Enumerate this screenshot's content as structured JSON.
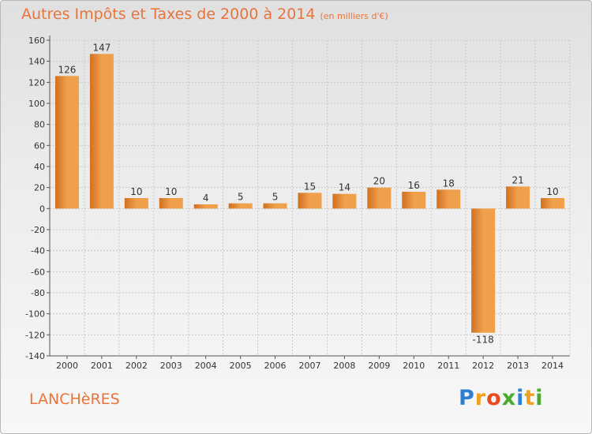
{
  "title": "Autres Impôts et Taxes de 2000 à 2014",
  "subtitle": "(en milliers d'€)",
  "place": "LANCHèRES",
  "logo": {
    "letters": [
      {
        "ch": "P",
        "color": "#2e7fd1"
      },
      {
        "ch": "r",
        "color": "#f0a01e"
      },
      {
        "ch": "o",
        "color": "#e84b1f"
      },
      {
        "ch": "x",
        "color": "#4aaa2e"
      },
      {
        "ch": "i",
        "color": "#2e7fd1"
      },
      {
        "ch": "t",
        "color": "#f0a01e"
      },
      {
        "ch": "i",
        "color": "#4aaa2e"
      }
    ]
  },
  "chart_data": {
    "type": "bar",
    "categories": [
      "2000",
      "2001",
      "2002",
      "2003",
      "2004",
      "2005",
      "2006",
      "2007",
      "2008",
      "2009",
      "2010",
      "2011",
      "2012",
      "2013",
      "2014"
    ],
    "values": [
      126,
      147,
      10,
      10,
      4,
      5,
      5,
      15,
      14,
      20,
      16,
      18,
      -118,
      21,
      10
    ],
    "ylim": [
      -140,
      160
    ],
    "yticks": [
      160,
      140,
      120,
      100,
      80,
      60,
      40,
      20,
      0,
      -20,
      -40,
      -60,
      -80,
      -100,
      -120,
      -140
    ],
    "bar_color": "#f0a04b",
    "bar_color_dark": "#d07020",
    "grid": true
  }
}
